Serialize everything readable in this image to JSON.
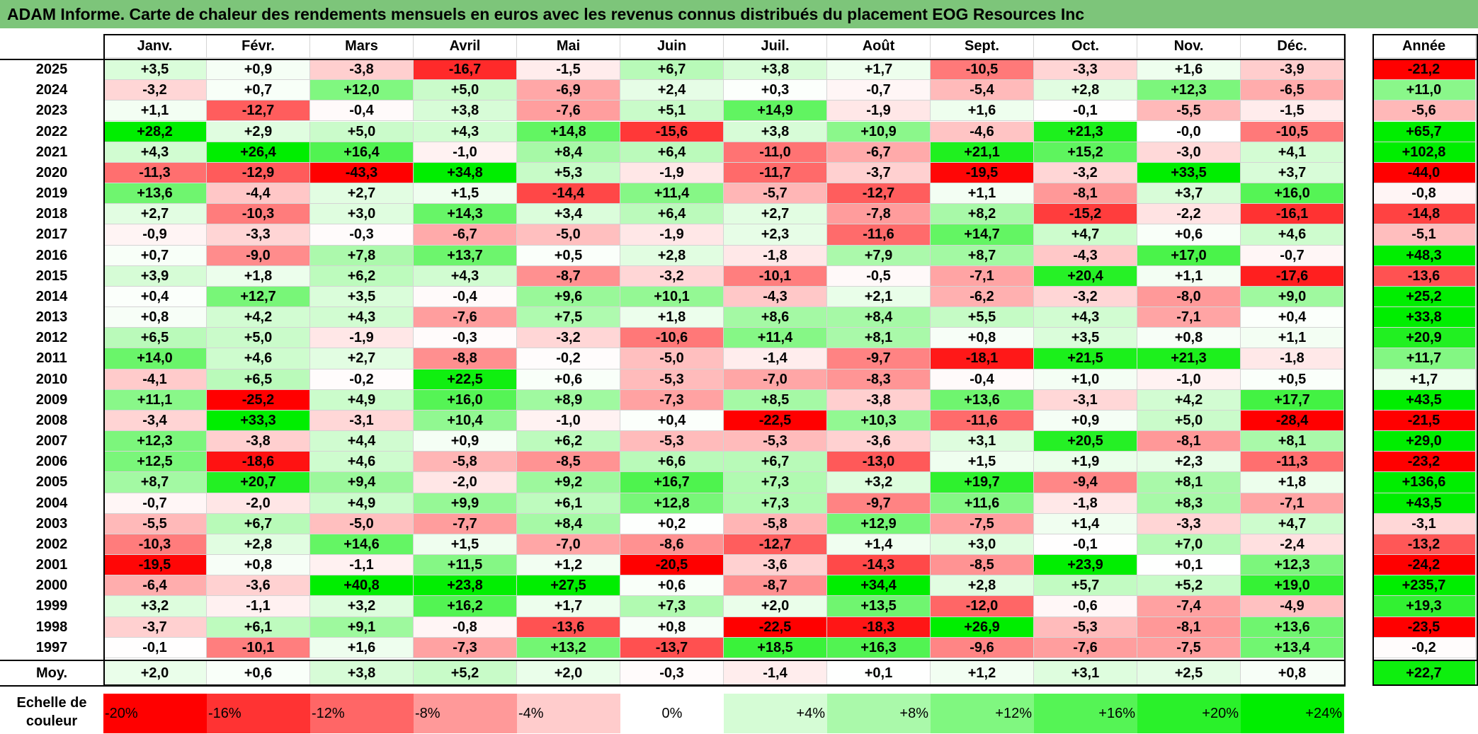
{
  "title": "ADAM Informe. Carte de chaleur des rendements mensuels en euros avec les revenus connus distribués du placement EOG Resources Inc",
  "chart_data": {
    "type": "heatmap",
    "title": "ADAM Informe. Carte de chaleur des rendements mensuels en euros avec les revenus connus distribués du placement EOG Resources Inc",
    "columns": [
      "Janv.",
      "Févr.",
      "Mars",
      "Avril",
      "Mai",
      "Juin",
      "Juil.",
      "Août",
      "Sept.",
      "Oct.",
      "Nov.",
      "Déc."
    ],
    "annual_label": "Année",
    "rows": [
      {
        "year": "2025",
        "values": [
          "+3,5",
          "+0,9",
          "-3,8",
          "-16,7",
          "-1,5",
          "+6,7",
          "+3,8",
          "+1,7",
          "-10,5",
          "-3,3",
          "+1,6",
          "-3,9"
        ],
        "annual": "-21,2"
      },
      {
        "year": "2024",
        "values": [
          "-3,2",
          "+0,7",
          "+12,0",
          "+5,0",
          "-6,9",
          "+2,4",
          "+0,3",
          "-0,7",
          "-5,4",
          "+2,8",
          "+12,3",
          "-6,5"
        ],
        "annual": "+11,0"
      },
      {
        "year": "2023",
        "values": [
          "+1,1",
          "-12,7",
          "-0,4",
          "+3,8",
          "-7,6",
          "+5,1",
          "+14,9",
          "-1,9",
          "+1,6",
          "-0,1",
          "-5,5",
          "-1,5"
        ],
        "annual": "-5,6"
      },
      {
        "year": "2022",
        "values": [
          "+28,2",
          "+2,9",
          "+5,0",
          "+4,3",
          "+14,8",
          "-15,6",
          "+3,8",
          "+10,9",
          "-4,6",
          "+21,3",
          "-0,0",
          "-10,5"
        ],
        "annual": "+65,7"
      },
      {
        "year": "2021",
        "values": [
          "+4,3",
          "+26,4",
          "+16,4",
          "-1,0",
          "+8,4",
          "+6,4",
          "-11,0",
          "-6,7",
          "+21,1",
          "+15,2",
          "-3,0",
          "+4,1"
        ],
        "annual": "+102,8"
      },
      {
        "year": "2020",
        "values": [
          "-11,3",
          "-12,9",
          "-43,3",
          "+34,8",
          "+5,3",
          "-1,9",
          "-11,7",
          "-3,7",
          "-19,5",
          "-3,2",
          "+33,5",
          "+3,7"
        ],
        "annual": "-44,0"
      },
      {
        "year": "2019",
        "values": [
          "+13,6",
          "-4,4",
          "+2,7",
          "+1,5",
          "-14,4",
          "+11,4",
          "-5,7",
          "-12,7",
          "+1,1",
          "-8,1",
          "+3,7",
          "+16,0"
        ],
        "annual": "-0,8"
      },
      {
        "year": "2018",
        "values": [
          "+2,7",
          "-10,3",
          "+3,0",
          "+14,3",
          "+3,4",
          "+6,4",
          "+2,7",
          "-7,8",
          "+8,2",
          "-15,2",
          "-2,2",
          "-16,1"
        ],
        "annual": "-14,8"
      },
      {
        "year": "2017",
        "values": [
          "-0,9",
          "-3,3",
          "-0,3",
          "-6,7",
          "-5,0",
          "-1,9",
          "+2,3",
          "-11,6",
          "+14,7",
          "+4,7",
          "+0,6",
          "+4,6"
        ],
        "annual": "-5,1"
      },
      {
        "year": "2016",
        "values": [
          "+0,7",
          "-9,0",
          "+7,8",
          "+13,7",
          "+0,5",
          "+2,8",
          "-1,8",
          "+7,9",
          "+8,7",
          "-4,3",
          "+17,0",
          "-0,7"
        ],
        "annual": "+48,3"
      },
      {
        "year": "2015",
        "values": [
          "+3,9",
          "+1,8",
          "+6,2",
          "+4,3",
          "-8,7",
          "-3,2",
          "-10,1",
          "-0,5",
          "-7,1",
          "+20,4",
          "+1,1",
          "-17,6"
        ],
        "annual": "-13,6"
      },
      {
        "year": "2014",
        "values": [
          "+0,4",
          "+12,7",
          "+3,5",
          "-0,4",
          "+9,6",
          "+10,1",
          "-4,3",
          "+2,1",
          "-6,2",
          "-3,2",
          "-8,0",
          "+9,0"
        ],
        "annual": "+25,2"
      },
      {
        "year": "2013",
        "values": [
          "+0,8",
          "+4,2",
          "+4,3",
          "-7,6",
          "+7,5",
          "+1,8",
          "+8,6",
          "+8,4",
          "+5,5",
          "+4,3",
          "-7,1",
          "+0,4"
        ],
        "annual": "+33,8"
      },
      {
        "year": "2012",
        "values": [
          "+6,5",
          "+5,0",
          "-1,9",
          "-0,3",
          "-3,2",
          "-10,6",
          "+11,4",
          "+8,1",
          "+0,8",
          "+3,5",
          "+0,8",
          "+1,1"
        ],
        "annual": "+20,9"
      },
      {
        "year": "2011",
        "values": [
          "+14,0",
          "+4,6",
          "+2,7",
          "-8,8",
          "-0,2",
          "-5,0",
          "-1,4",
          "-9,7",
          "-18,1",
          "+21,5",
          "+21,3",
          "-1,8"
        ],
        "annual": "+11,7"
      },
      {
        "year": "2010",
        "values": [
          "-4,1",
          "+6,5",
          "-0,2",
          "+22,5",
          "+0,6",
          "-5,3",
          "-7,0",
          "-8,3",
          "-0,4",
          "+1,0",
          "-1,0",
          "+0,5"
        ],
        "annual": "+1,7"
      },
      {
        "year": "2009",
        "values": [
          "+11,1",
          "-25,2",
          "+4,9",
          "+16,0",
          "+8,9",
          "-7,3",
          "+8,5",
          "-3,8",
          "+13,6",
          "-3,1",
          "+4,2",
          "+17,7"
        ],
        "annual": "+43,5"
      },
      {
        "year": "2008",
        "values": [
          "-3,4",
          "+33,3",
          "-3,1",
          "+10,4",
          "-1,0",
          "+0,4",
          "-22,5",
          "+10,3",
          "-11,6",
          "+0,9",
          "+5,0",
          "-28,4"
        ],
        "annual": "-21,5"
      },
      {
        "year": "2007",
        "values": [
          "+12,3",
          "-3,8",
          "+4,4",
          "+0,9",
          "+6,2",
          "-5,3",
          "-5,3",
          "-3,6",
          "+3,1",
          "+20,5",
          "-8,1",
          "+8,1"
        ],
        "annual": "+29,0"
      },
      {
        "year": "2006",
        "values": [
          "+12,5",
          "-18,6",
          "+4,6",
          "-5,8",
          "-8,5",
          "+6,6",
          "+6,7",
          "-13,0",
          "+1,5",
          "+1,9",
          "+2,3",
          "-11,3"
        ],
        "annual": "-23,2"
      },
      {
        "year": "2005",
        "values": [
          "+8,7",
          "+20,7",
          "+9,4",
          "-2,0",
          "+9,2",
          "+16,7",
          "+7,3",
          "+3,2",
          "+19,7",
          "-9,4",
          "+8,1",
          "+1,8"
        ],
        "annual": "+136,6"
      },
      {
        "year": "2004",
        "values": [
          "-0,7",
          "-2,0",
          "+4,9",
          "+9,9",
          "+6,1",
          "+12,8",
          "+7,3",
          "-9,7",
          "+11,6",
          "-1,8",
          "+8,3",
          "-7,1"
        ],
        "annual": "+43,5"
      },
      {
        "year": "2003",
        "values": [
          "-5,5",
          "+6,7",
          "-5,0",
          "-7,7",
          "+8,4",
          "+0,2",
          "-5,8",
          "+12,9",
          "-7,5",
          "+1,4",
          "-3,3",
          "+4,7"
        ],
        "annual": "-3,1"
      },
      {
        "year": "2002",
        "values": [
          "-10,3",
          "+2,8",
          "+14,6",
          "+1,5",
          "-7,0",
          "-8,6",
          "-12,7",
          "+1,4",
          "+3,0",
          "-0,1",
          "+7,0",
          "-2,4"
        ],
        "annual": "-13,2"
      },
      {
        "year": "2001",
        "values": [
          "-19,5",
          "+0,8",
          "-1,1",
          "+11,5",
          "+1,2",
          "-20,5",
          "-3,6",
          "-14,3",
          "-8,5",
          "+23,9",
          "+0,1",
          "+12,3"
        ],
        "annual": "-24,2"
      },
      {
        "year": "2000",
        "values": [
          "-6,4",
          "-3,6",
          "+40,8",
          "+23,8",
          "+27,5",
          "+0,6",
          "-8,7",
          "+34,4",
          "+2,8",
          "+5,7",
          "+5,2",
          "+19,0"
        ],
        "annual": "+235,7"
      },
      {
        "year": "1999",
        "values": [
          "+3,2",
          "-1,1",
          "+3,2",
          "+16,2",
          "+1,7",
          "+7,3",
          "+2,0",
          "+13,5",
          "-12,0",
          "-0,6",
          "-7,4",
          "-4,9"
        ],
        "annual": "+19,3"
      },
      {
        "year": "1998",
        "values": [
          "-3,7",
          "+6,1",
          "+9,1",
          "-0,8",
          "-13,6",
          "+0,8",
          "-22,5",
          "-18,3",
          "+26,9",
          "-5,3",
          "-8,1",
          "+13,6"
        ],
        "annual": "-23,5"
      },
      {
        "year": "1997",
        "values": [
          "-0,1",
          "-10,1",
          "+1,6",
          "-7,3",
          "+13,2",
          "-13,7",
          "+18,5",
          "+16,3",
          "-9,6",
          "-7,6",
          "-7,5",
          "+13,4"
        ],
        "annual": "-0,2"
      }
    ],
    "average": {
      "label": "Moy.",
      "values": [
        "+2,0",
        "+0,6",
        "+3,8",
        "+5,2",
        "+2,0",
        "-0,3",
        "-1,4",
        "+0,1",
        "+1,2",
        "+3,1",
        "+2,5",
        "+0,8"
      ],
      "annual": "+22,7"
    },
    "color_scale": {
      "label": "Echelle de couleur",
      "stops": [
        "-20%",
        "-16%",
        "-12%",
        "-8%",
        "-4%",
        "0%",
        "+4%",
        "+8%",
        "+12%",
        "+16%",
        "+20%",
        "+24%"
      ],
      "negative_color": "#ff0000",
      "neutral_color": "#ffffff",
      "positive_color": "#00ee00"
    }
  }
}
